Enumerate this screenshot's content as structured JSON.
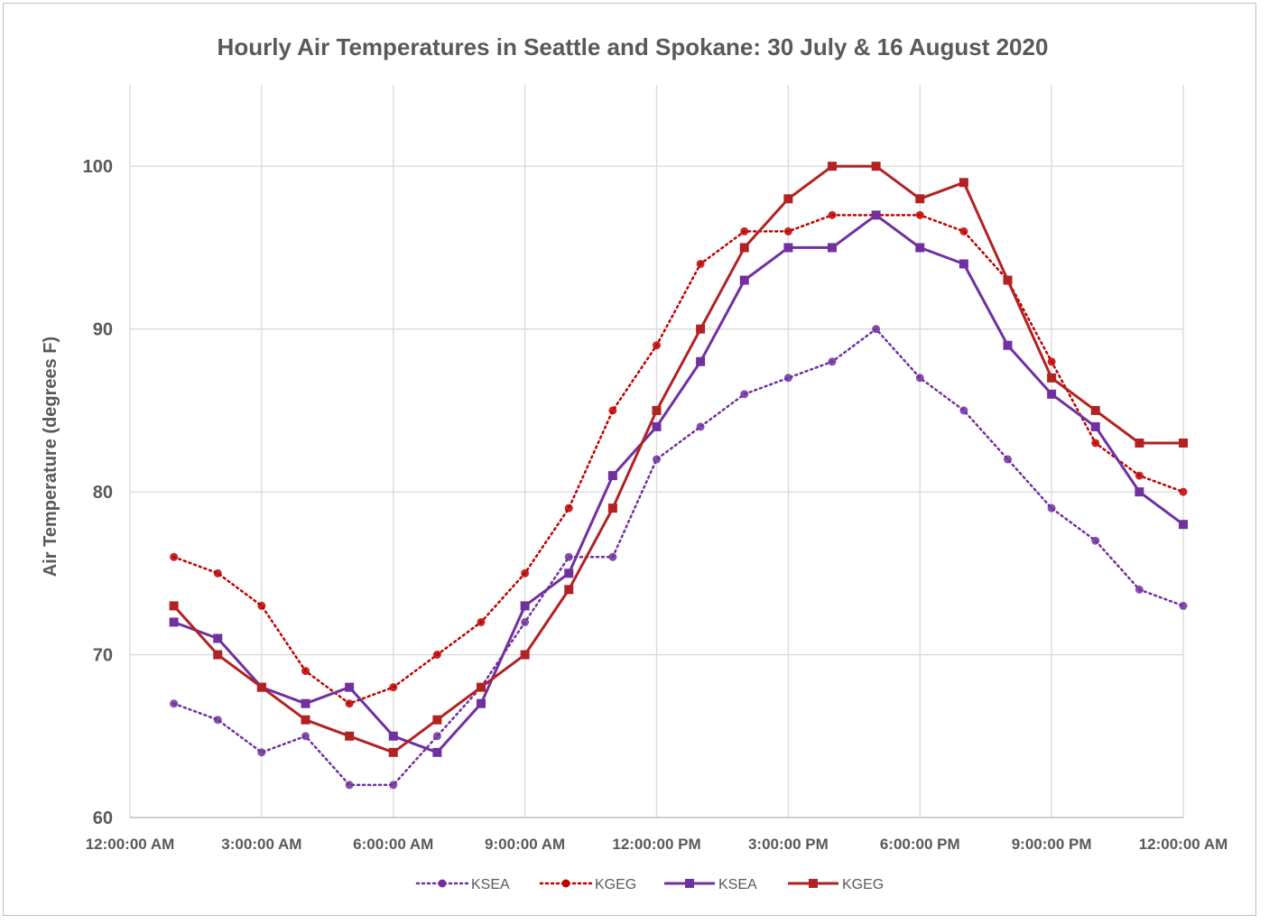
{
  "chart_data": {
    "type": "line",
    "title": "Hourly Air Temperatures in Seattle and Spokane: 30 July & 16 August 2020",
    "ylabel": "Air Temperature (degrees F)",
    "xlabel": "",
    "ylim": [
      60,
      105
    ],
    "yticks": [
      60,
      70,
      80,
      90,
      100
    ],
    "x_tick_labels": [
      "12:00:00 AM",
      "3:00:00 AM",
      "6:00:00 AM",
      "9:00:00 AM",
      "12:00:00 PM",
      "3:00:00 PM",
      "6:00:00 PM",
      "9:00:00 PM",
      "12:00:00 AM"
    ],
    "x_hours_range": [
      0,
      24
    ],
    "grid": true,
    "legend_position": "bottom",
    "x_hours": [
      1,
      2,
      3,
      4,
      5,
      6,
      7,
      8,
      9,
      10,
      11,
      12,
      13,
      14,
      15,
      16,
      17,
      18,
      19,
      20,
      21,
      22,
      23,
      24
    ],
    "series": [
      {
        "name": "KSEA",
        "color": "#7030a0",
        "line_style": "dotted",
        "marker": "circle",
        "values": [
          67,
          66,
          64,
          65,
          62,
          62,
          65,
          68,
          72,
          76,
          76,
          82,
          84,
          86,
          87,
          88,
          90,
          87,
          85,
          82,
          79,
          77,
          74,
          73
        ]
      },
      {
        "name": "KGEG",
        "color": "#c00000",
        "line_style": "dotted",
        "marker": "circle",
        "values": [
          76,
          75,
          73,
          69,
          67,
          68,
          70,
          72,
          75,
          79,
          85,
          89,
          94,
          96,
          96,
          97,
          97,
          97,
          96,
          93,
          88,
          83,
          81,
          80
        ]
      },
      {
        "name": "KSEA",
        "color": "#7030a0",
        "line_style": "solid",
        "marker": "square",
        "values": [
          72,
          71,
          68,
          67,
          68,
          65,
          64,
          67,
          73,
          75,
          81,
          84,
          88,
          93,
          95,
          95,
          97,
          95,
          94,
          89,
          86,
          84,
          80,
          78
        ]
      },
      {
        "name": "KGEG",
        "color": "#b22222",
        "line_style": "solid",
        "marker": "square",
        "values": [
          73,
          70,
          68,
          66,
          65,
          64,
          66,
          68,
          70,
          74,
          79,
          85,
          90,
          95,
          98,
          100,
          100,
          98,
          99,
          93,
          87,
          85,
          83,
          83
        ]
      }
    ]
  }
}
